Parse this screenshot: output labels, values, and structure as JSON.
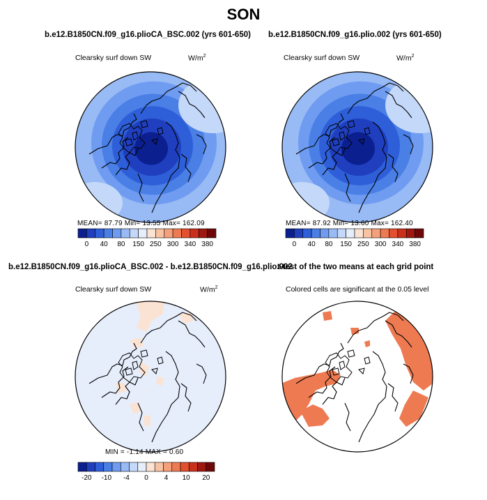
{
  "title": "SON",
  "panels": [
    {
      "title": "b.e12.B1850CN.f09_g16.plioCA_BSC.002 (yrs 601-650)",
      "variable": "Clearsky surf down SW",
      "units_base": "W/m",
      "units_exp": "2",
      "stats": "MEAN=   87.79   Min=   13.55   Max=  162.09"
    },
    {
      "title": "b.e12.B1850CN.f09_g16.plio.002 (yrs 601-650)",
      "variable": "Clearsky surf down SW",
      "units_base": "W/m",
      "units_exp": "2",
      "stats": "MEAN=   87.92   Min=   13.60   Max=  162.40"
    },
    {
      "title": "b.e12.B1850CN.f09_g16.plioCA_BSC.002 - b.e12.B1850CN.f09_g16.plio.002",
      "variable": "Clearsky surf down SW",
      "units_base": "W/m",
      "units_exp": "2",
      "stats": "MIN  =   -1.14  MAX  =     0.60"
    },
    {
      "title": "t-test of the two means at each grid point",
      "subtitle": "Colored cells are significant at the 0.05 level"
    }
  ],
  "colorbar_top": {
    "colors": [
      "#0b1f8f",
      "#1f3fbf",
      "#2f5fd8",
      "#4a7fe6",
      "#6f9cf0",
      "#98baf5",
      "#c4d8fa",
      "#e6eefc",
      "#fbe3d3",
      "#f8c3a3",
      "#f4a07a",
      "#ee7a52",
      "#e2502f",
      "#c9301c",
      "#9e1810",
      "#6e0808"
    ],
    "ticks": [
      "0",
      "40",
      "80",
      "150",
      "250",
      "300",
      "340",
      "380"
    ]
  },
  "colorbar_bottom": {
    "colors": [
      "#0b1f8f",
      "#1f3fbf",
      "#2f5fd8",
      "#4a7fe6",
      "#6f9cf0",
      "#98baf5",
      "#c4d8fa",
      "#e6eefc",
      "#fbe3d3",
      "#f8c3a3",
      "#f4a07a",
      "#ee7a52",
      "#e2502f",
      "#c9301c",
      "#9e1810",
      "#6e0808"
    ],
    "ticks": [
      "-20",
      "-10",
      "-4",
      "0",
      "4",
      "10",
      "20"
    ]
  },
  "chart_data": [
    {
      "type": "heatmap",
      "projection": "north polar stereographic",
      "title": "b.e12.B1850CN.f09_g16.plioCA_BSC.002 (yrs 601-650)",
      "variable": "Clearsky surf down SW",
      "units": "W/m2",
      "mean": 87.79,
      "min": 13.55,
      "max": 162.09,
      "levels": [
        0,
        20,
        40,
        60,
        80,
        100,
        150,
        200,
        250,
        275,
        300,
        320,
        340,
        360,
        380
      ]
    },
    {
      "type": "heatmap",
      "projection": "north polar stereographic",
      "title": "b.e12.B1850CN.f09_g16.plio.002 (yrs 601-650)",
      "variable": "Clearsky surf down SW",
      "units": "W/m2",
      "mean": 87.92,
      "min": 13.6,
      "max": 162.4,
      "levels": [
        0,
        20,
        40,
        60,
        80,
        100,
        150,
        200,
        250,
        275,
        300,
        320,
        340,
        360,
        380
      ]
    },
    {
      "type": "heatmap",
      "projection": "north polar stereographic",
      "title": "b.e12.B1850CN.f09_g16.plioCA_BSC.002 - b.e12.B1850CN.f09_g16.plio.002",
      "variable": "Clearsky surf down SW",
      "units": "W/m2",
      "min": -1.14,
      "max": 0.6,
      "levels": [
        -30,
        -20,
        -15,
        -10,
        -6,
        -4,
        -2,
        0,
        2,
        4,
        6,
        10,
        15,
        20,
        30
      ]
    },
    {
      "type": "heatmap",
      "projection": "north polar stereographic",
      "title": "t-test of the two means at each grid point",
      "subtitle": "Colored cells are significant at the 0.05 level",
      "significance_level": 0.05
    }
  ]
}
